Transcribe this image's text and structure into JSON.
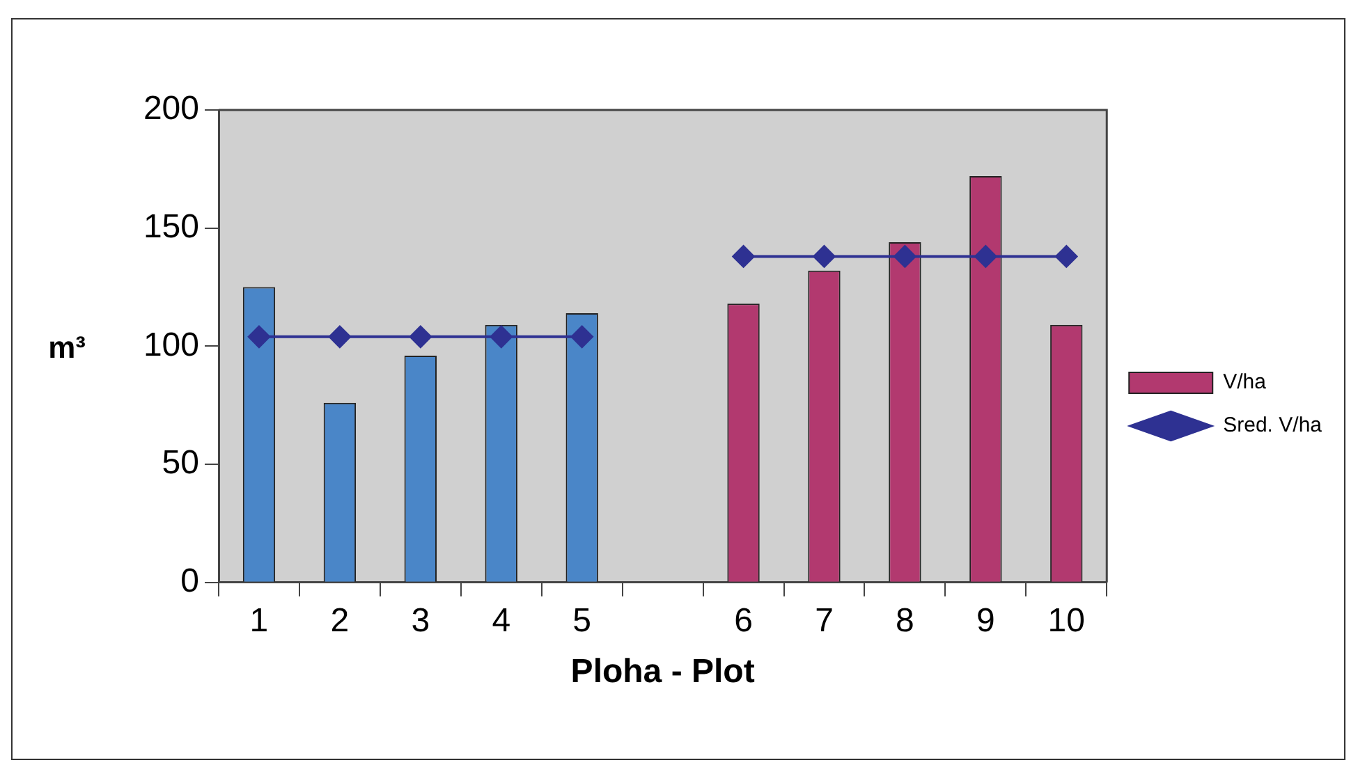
{
  "chart_data": {
    "type": "bar",
    "xlabel": "Ploha - Plot",
    "ylabel": "m³",
    "categories": [
      "1",
      "2",
      "3",
      "4",
      "5",
      null,
      "6",
      "7",
      "8",
      "9",
      "10"
    ],
    "series": [
      {
        "name": "V/ha",
        "color": "#b2396f",
        "colors": [
          "#4a86c8",
          "#4a86c8",
          "#4a86c8",
          "#4a86c8",
          "#4a86c8",
          null,
          "#b2396f",
          "#b2396f",
          "#b2396f",
          "#b2396f",
          "#b2396f"
        ],
        "values": [
          125,
          76,
          96,
          109,
          114,
          null,
          118,
          132,
          144,
          172,
          109
        ]
      },
      {
        "type": "line",
        "name": "Sred. V/ha",
        "color": "#2e3192",
        "marker": "diamond",
        "line_style": "solid",
        "values": [
          104,
          104,
          104,
          104,
          104,
          null,
          138,
          138,
          138,
          138,
          138
        ]
      }
    ],
    "ylim": [
      0,
      200
    ],
    "yticks": [
      0,
      50,
      100,
      150,
      200
    ],
    "grid": false,
    "legend": "right"
  }
}
